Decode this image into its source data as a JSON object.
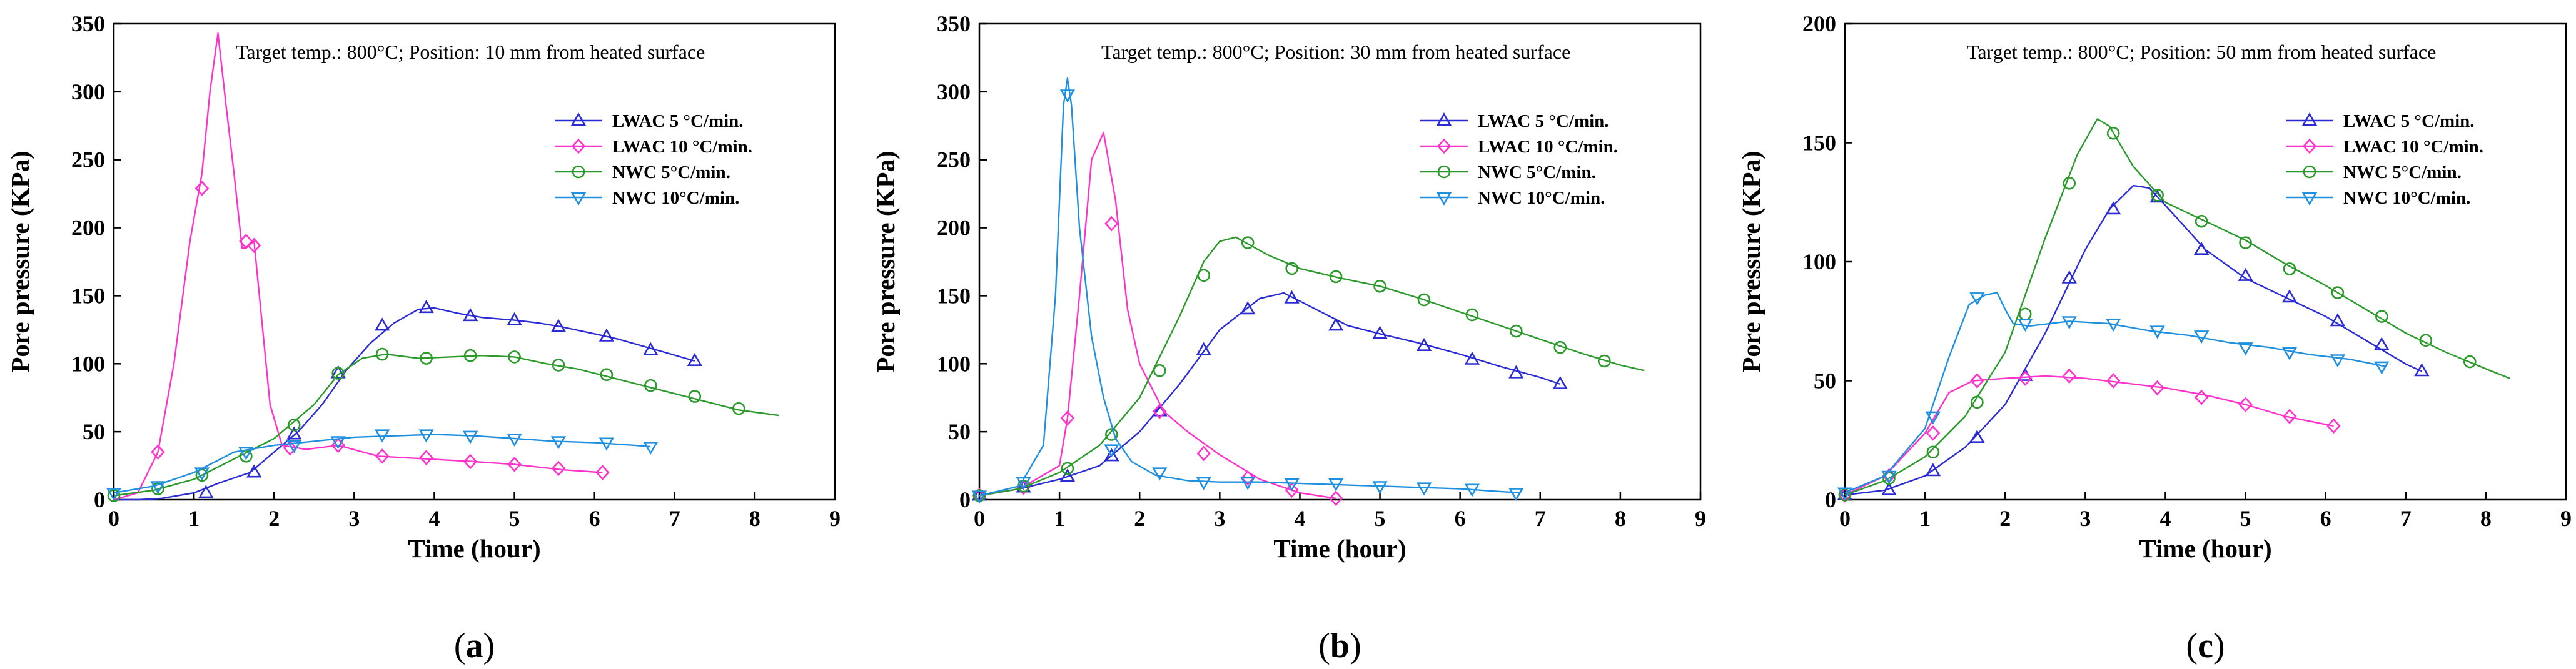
{
  "chart_data": [
    {
      "type": "line",
      "panel_label": "a",
      "title": "Target temp.: 800°C; Position: 10 mm from heated surface",
      "xlabel": "Time (hour)",
      "ylabel": "Pore pressure (KPa)",
      "xlim": [
        0,
        9
      ],
      "ylim": [
        0,
        350
      ],
      "xticks": [
        0,
        1,
        2,
        3,
        4,
        5,
        6,
        7,
        8,
        9
      ],
      "yticks": [
        0,
        50,
        100,
        150,
        200,
        250,
        300,
        350
      ],
      "legend_position": "right",
      "series": [
        {
          "name": "LWAC 5 °C/min.",
          "color": "#2b2bd6",
          "marker": "triangle-up",
          "x": [
            0,
            0.3,
            0.6,
            1.0,
            1.3,
            1.7,
            2.0,
            2.3,
            2.6,
            2.9,
            3.2,
            3.5,
            3.8,
            4.0,
            4.3,
            4.6,
            5.0,
            5.3,
            5.6,
            6.0,
            6.3,
            6.6,
            6.9,
            7.25
          ],
          "y": [
            0,
            0,
            1,
            5,
            12,
            20,
            35,
            50,
            70,
            95,
            115,
            130,
            140,
            141,
            137,
            134,
            132,
            130,
            127,
            122,
            118,
            113,
            108,
            102
          ],
          "marker_x": [
            1.15,
            1.75,
            2.25,
            2.8,
            3.35,
            3.9,
            4.45,
            5.0,
            5.55,
            6.15,
            6.7,
            7.25
          ],
          "marker_y": [
            5,
            20,
            48,
            93,
            128,
            141,
            135,
            132,
            127,
            120,
            110,
            102
          ]
        },
        {
          "name": "LWAC 10 °C/min.",
          "color": "#ff33cc",
          "marker": "diamond",
          "x": [
            0,
            0.3,
            0.55,
            0.75,
            0.95,
            1.1,
            1.2,
            1.3,
            1.4,
            1.5,
            1.6,
            1.65,
            1.75,
            1.8,
            1.95,
            2.1,
            2.4,
            2.8,
            3.3,
            3.9,
            4.5,
            5.0,
            5.6,
            6.1
          ],
          "y": [
            0,
            5,
            35,
            100,
            190,
            240,
            300,
            343,
            290,
            240,
            185,
            185,
            190,
            160,
            70,
            40,
            37,
            40,
            32,
            30,
            28,
            26,
            22,
            20
          ],
          "marker_x": [
            0.55,
            1.1,
            1.65,
            1.75,
            2.2,
            2.8,
            3.35,
            3.9,
            4.45,
            5.0,
            5.55,
            6.1
          ],
          "marker_y": [
            35,
            229,
            190,
            187,
            38,
            40,
            32,
            31,
            28,
            26,
            23,
            20
          ]
        },
        {
          "name": "NWC 5°C/min.",
          "color": "#2a9a2a",
          "marker": "circle",
          "x": [
            0,
            0.5,
            1.0,
            1.5,
            2.0,
            2.5,
            2.8,
            3.1,
            3.4,
            3.8,
            4.2,
            4.6,
            5.0,
            5.4,
            5.8,
            6.2,
            6.6,
            7.0,
            7.4,
            7.8,
            8.3
          ],
          "y": [
            3,
            7,
            15,
            30,
            45,
            70,
            92,
            104,
            107,
            104,
            105,
            106,
            105,
            100,
            96,
            90,
            84,
            78,
            72,
            66,
            62
          ],
          "marker_x": [
            0,
            0.55,
            1.1,
            1.65,
            2.25,
            2.8,
            3.35,
            3.9,
            4.45,
            5.0,
            5.55,
            6.15,
            6.7,
            7.25,
            7.8
          ],
          "marker_y": [
            3,
            8,
            18,
            32,
            55,
            93,
            107,
            104,
            106,
            105,
            99,
            92,
            84,
            76,
            67
          ]
        },
        {
          "name": "NWC 10°C/min.",
          "color": "#1f8fe0",
          "marker": "triangle-down",
          "x": [
            0,
            0.5,
            1.0,
            1.5,
            2.0,
            2.5,
            3.0,
            3.5,
            4.0,
            4.5,
            5.0,
            5.5,
            6.0,
            6.5,
            6.7
          ],
          "y": [
            5,
            10,
            20,
            35,
            40,
            43,
            46,
            47,
            48,
            47,
            45,
            43,
            42,
            40,
            39
          ],
          "marker_x": [
            0,
            0.55,
            1.1,
            1.65,
            2.25,
            2.8,
            3.35,
            3.9,
            4.45,
            5.0,
            5.55,
            6.15,
            6.7
          ],
          "marker_y": [
            5,
            10,
            20,
            35,
            40,
            43,
            48,
            48,
            47,
            45,
            43,
            42,
            39
          ]
        }
      ]
    },
    {
      "type": "line",
      "panel_label": "b",
      "title": "Target temp.: 800°C; Position: 30 mm from heated surface",
      "xlabel": "Time (hour)",
      "ylabel": "Pore pressure (KPa)",
      "xlim": [
        0,
        9
      ],
      "ylim": [
        0,
        350
      ],
      "xticks": [
        0,
        1,
        2,
        3,
        4,
        5,
        6,
        7,
        8,
        9
      ],
      "yticks": [
        0,
        50,
        100,
        150,
        200,
        250,
        300,
        350
      ],
      "legend_position": "right",
      "series": [
        {
          "name": "LWAC 5 °C/min.",
          "color": "#2b2bd6",
          "marker": "triangle-up",
          "x": [
            0,
            0.5,
            1.0,
            1.5,
            2.0,
            2.5,
            3.0,
            3.5,
            3.8,
            4.2,
            4.6,
            5.0,
            5.5,
            6.0,
            6.5,
            7.0,
            7.25
          ],
          "y": [
            3,
            8,
            15,
            25,
            50,
            85,
            125,
            148,
            152,
            140,
            128,
            122,
            115,
            107,
            98,
            90,
            85
          ],
          "marker_x": [
            0,
            0.55,
            1.1,
            1.65,
            2.25,
            2.8,
            3.35,
            3.9,
            4.45,
            5.0,
            5.55,
            6.15,
            6.7,
            7.25
          ],
          "marker_y": [
            3,
            9,
            17,
            32,
            65,
            110,
            140,
            148,
            128,
            122,
            113,
            103,
            93,
            85
          ]
        },
        {
          "name": "LWAC 10 °C/min.",
          "color": "#ff33cc",
          "marker": "diamond",
          "x": [
            0,
            0.5,
            1.0,
            1.1,
            1.25,
            1.4,
            1.55,
            1.7,
            1.85,
            2.0,
            2.3,
            2.6,
            3.0,
            3.5,
            4.0,
            4.45
          ],
          "y": [
            3,
            8,
            25,
            60,
            150,
            250,
            270,
            220,
            140,
            100,
            65,
            50,
            33,
            15,
            5,
            1
          ],
          "marker_x": [
            0,
            0.55,
            1.1,
            1.65,
            2.25,
            2.8,
            3.35,
            3.9,
            4.45
          ],
          "marker_y": [
            3,
            9,
            60,
            203,
            65,
            34,
            16,
            7,
            1
          ]
        },
        {
          "name": "NWC 5°C/min.",
          "color": "#2a9a2a",
          "marker": "circle",
          "x": [
            0,
            0.5,
            1.0,
            1.5,
            2.0,
            2.5,
            2.8,
            3.0,
            3.2,
            3.6,
            4.0,
            4.5,
            5.0,
            5.5,
            6.0,
            6.5,
            7.0,
            7.5,
            8.0,
            8.3
          ],
          "y": [
            3,
            8,
            20,
            40,
            75,
            135,
            175,
            190,
            193,
            180,
            170,
            163,
            157,
            148,
            138,
            128,
            118,
            108,
            99,
            95
          ],
          "marker_x": [
            0,
            0.55,
            1.1,
            1.65,
            2.25,
            2.8,
            3.35,
            3.9,
            4.45,
            5.0,
            5.55,
            6.15,
            6.7,
            7.25,
            7.8
          ],
          "marker_y": [
            3,
            10,
            23,
            48,
            95,
            165,
            189,
            170,
            164,
            157,
            147,
            136,
            124,
            112,
            102
          ]
        },
        {
          "name": "NWC 10°C/min.",
          "color": "#1f8fe0",
          "marker": "triangle-down",
          "x": [
            0,
            0.5,
            0.8,
            0.95,
            1.05,
            1.1,
            1.15,
            1.25,
            1.4,
            1.55,
            1.7,
            1.9,
            2.2,
            2.6,
            3.0,
            3.5,
            4.0,
            4.5,
            5.0,
            5.5,
            6.0,
            6.5,
            6.75
          ],
          "y": [
            3,
            10,
            40,
            150,
            290,
            310,
            290,
            200,
            120,
            75,
            45,
            28,
            18,
            14,
            13,
            13,
            12,
            11,
            10,
            9,
            8,
            6,
            5
          ],
          "marker_x": [
            0,
            0.55,
            1.1,
            1.65,
            2.25,
            2.8,
            3.35,
            3.9,
            4.45,
            5.0,
            5.55,
            6.15,
            6.7
          ],
          "marker_y": [
            3,
            13,
            298,
            37,
            20,
            13,
            13,
            12,
            12,
            10,
            9,
            8,
            5
          ]
        }
      ]
    },
    {
      "type": "line",
      "panel_label": "c",
      "title": "Target temp.: 800°C; Position: 50 mm from heated surface",
      "xlabel": "Time (hour)",
      "ylabel": "Pore pressure (KPa)",
      "xlim": [
        0,
        9
      ],
      "ylim": [
        0,
        200
      ],
      "xticks": [
        0,
        1,
        2,
        3,
        4,
        5,
        6,
        7,
        8,
        9
      ],
      "yticks": [
        0,
        50,
        100,
        150,
        200
      ],
      "legend_position": "right",
      "series": [
        {
          "name": "LWAC 5 °C/min.",
          "color": "#2b2bd6",
          "marker": "triangle-up",
          "x": [
            0,
            0.5,
            1.0,
            1.5,
            2.0,
            2.5,
            3.0,
            3.3,
            3.6,
            3.8,
            4.1,
            4.5,
            5.0,
            5.5,
            6.0,
            6.5,
            7.0,
            7.2
          ],
          "y": [
            2,
            4,
            10,
            22,
            40,
            70,
            105,
            122,
            132,
            131,
            120,
            105,
            93,
            85,
            77,
            67,
            57,
            54
          ],
          "marker_x": [
            0,
            0.55,
            1.1,
            1.65,
            2.25,
            2.8,
            3.35,
            3.9,
            4.45,
            5.0,
            5.55,
            6.15,
            6.7,
            7.2
          ],
          "marker_y": [
            2,
            4,
            12,
            26,
            52,
            93,
            122,
            127,
            105,
            94,
            85,
            75,
            65,
            54
          ]
        },
        {
          "name": "LWAC 10 °C/min.",
          "color": "#ff33cc",
          "marker": "diamond",
          "x": [
            0,
            0.5,
            1.0,
            1.3,
            1.6,
            2.0,
            2.5,
            3.0,
            3.5,
            4.0,
            4.5,
            5.0,
            5.5,
            6.1
          ],
          "y": [
            2,
            10,
            28,
            45,
            50,
            51,
            52,
            51,
            49,
            47,
            44,
            40,
            35,
            31
          ],
          "marker_x": [
            0,
            0.55,
            1.1,
            1.65,
            2.25,
            2.8,
            3.35,
            3.9,
            4.45,
            5.0,
            5.55,
            6.1
          ],
          "marker_y": [
            2,
            10,
            28,
            50,
            51,
            52,
            50,
            47,
            43,
            40,
            35,
            31
          ]
        },
        {
          "name": "NWC 5°C/min.",
          "color": "#2a9a2a",
          "marker": "circle",
          "x": [
            0,
            0.5,
            1.0,
            1.5,
            2.0,
            2.5,
            2.9,
            3.15,
            3.3,
            3.6,
            4.0,
            4.5,
            5.0,
            5.5,
            6.0,
            6.5,
            7.0,
            7.5,
            8.0,
            8.3
          ],
          "y": [
            2,
            8,
            18,
            35,
            62,
            110,
            145,
            160,
            157,
            140,
            125,
            117,
            109,
            99,
            90,
            80,
            70,
            62,
            55,
            51
          ],
          "marker_x": [
            0,
            0.55,
            1.1,
            1.65,
            2.25,
            2.8,
            3.35,
            3.9,
            4.45,
            5.0,
            5.55,
            6.15,
            6.7,
            7.25,
            7.8
          ],
          "marker_y": [
            2,
            9,
            20,
            41,
            78,
            133,
            154,
            128,
            117,
            108,
            97,
            87,
            77,
            67,
            58
          ]
        },
        {
          "name": "NWC 10°C/min.",
          "color": "#1f8fe0",
          "marker": "triangle-down",
          "x": [
            0,
            0.5,
            1.0,
            1.3,
            1.55,
            1.75,
            1.9,
            2.0,
            2.1,
            2.3,
            2.8,
            3.3,
            3.8,
            4.3,
            4.8,
            5.3,
            5.8,
            6.3,
            6.75
          ],
          "y": [
            3,
            10,
            30,
            60,
            82,
            86,
            87,
            80,
            74,
            73,
            75,
            74,
            71,
            69,
            66,
            64,
            61,
            59,
            56
          ],
          "marker_x": [
            0,
            0.55,
            1.1,
            1.65,
            2.25,
            2.8,
            3.35,
            3.9,
            4.45,
            5.0,
            5.55,
            6.15,
            6.7
          ],
          "marker_y": [
            3,
            10,
            35,
            85,
            74,
            75,
            74,
            71,
            69,
            64,
            62,
            59,
            56
          ]
        }
      ]
    }
  ]
}
